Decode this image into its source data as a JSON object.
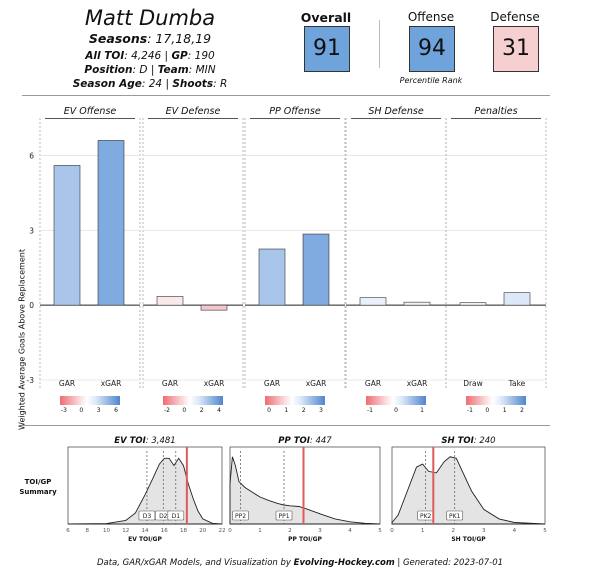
{
  "header": {
    "player_name": "Matt Dumba",
    "seasons_label": "Seasons",
    "seasons_value": "17,18,19",
    "all_toi_label": "All TOI",
    "all_toi_value": "4,246",
    "gp_label": "GP",
    "gp_value": "190",
    "position_label": "Position",
    "position_value": "D",
    "team_label": "Team",
    "team_value": "MIN",
    "season_age_label": "Season Age",
    "season_age_value": "24",
    "shoots_label": "Shoots",
    "shoots_value": "R"
  },
  "scores": {
    "overall_label": "Overall",
    "overall_value": "91",
    "offense_label": "Offense",
    "offense_value": "94",
    "defense_label": "Defense",
    "defense_value": "31",
    "percentile_label": "Percentile Rank",
    "colors": {
      "overall": "#6fa3dc",
      "offense": "#6fa3dc",
      "defense": "#f6cfd0"
    }
  },
  "chart_data": [
    {
      "type": "bar",
      "ylabel": "Weighted Average Goals Above Replacement",
      "ylim": [
        -3.4,
        7.5
      ],
      "yticks": [
        -3,
        0,
        3,
        6
      ],
      "panels": [
        {
          "title": "EV Offense",
          "categories": [
            "GAR",
            "xGAR"
          ],
          "values": [
            5.6,
            6.6
          ],
          "colors": [
            "#a9c6ea",
            "#80abe0"
          ],
          "legend_ticks": [
            "-3",
            "0",
            "3",
            "6"
          ]
        },
        {
          "title": "EV Defense",
          "categories": [
            "GAR",
            "xGAR"
          ],
          "values": [
            0.35,
            -0.2
          ],
          "colors": [
            "#fbe9ea",
            "#f3c7cb"
          ],
          "legend_ticks": [
            "-2",
            "0",
            "2",
            "4"
          ]
        },
        {
          "title": "PP Offense",
          "categories": [
            "GAR",
            "xGAR"
          ],
          "values": [
            2.25,
            2.85
          ],
          "colors": [
            "#a9c6ea",
            "#80abe0"
          ],
          "legend_ticks": [
            "0",
            "1",
            "2",
            "3"
          ]
        },
        {
          "title": "SH Defense",
          "categories": [
            "GAR",
            "xGAR"
          ],
          "values": [
            0.3,
            0.12
          ],
          "colors": [
            "#eaf0fb",
            "#eef3fb"
          ],
          "legend_ticks": [
            "-1",
            "0",
            "1"
          ]
        },
        {
          "title": "Penalties",
          "categories": [
            "Draw",
            "Take"
          ],
          "values": [
            0.1,
            0.5
          ],
          "colors": [
            "#eef3fb",
            "#dce7f7"
          ],
          "legend_ticks": [
            "-1",
            "0",
            "1",
            "2"
          ]
        }
      ]
    },
    {
      "type": "area",
      "title_label": "EV TOI",
      "title_value": "3,481",
      "xlabel": "EV TOI/GP",
      "xlim": [
        6,
        22
      ],
      "xticks": [
        6,
        8,
        10,
        12,
        14,
        16,
        18,
        20,
        22
      ],
      "player_value": 18.35,
      "markers": [
        {
          "label": "D3",
          "x": 14.2
        },
        {
          "label": "D2",
          "x": 15.9
        },
        {
          "label": "D1",
          "x": 17.2
        }
      ],
      "x": [
        6,
        10,
        12,
        13,
        14,
        14.8,
        15.5,
        16,
        16.5,
        17,
        17.5,
        18,
        18.5,
        19,
        19.5,
        20,
        21,
        22
      ],
      "y": [
        0,
        0.005,
        0.05,
        0.15,
        0.4,
        0.62,
        0.82,
        0.9,
        0.9,
        0.8,
        0.9,
        0.8,
        0.55,
        0.35,
        0.18,
        0.07,
        0.01,
        0
      ]
    },
    {
      "type": "area",
      "title_label": "PP TOI",
      "title_value": "447",
      "xlabel": "PP TOI/GP",
      "xlim": [
        0,
        5
      ],
      "xticks": [
        0,
        1,
        2,
        3,
        4,
        5
      ],
      "player_value": 2.45,
      "markers": [
        {
          "label": "PP2",
          "x": 0.35
        },
        {
          "label": "PP1",
          "x": 1.8
        }
      ],
      "x": [
        0,
        0.08,
        0.18,
        0.3,
        0.5,
        0.8,
        1.0,
        1.3,
        1.6,
        1.8,
        2.0,
        2.3,
        2.6,
        3.0,
        3.5,
        4.0,
        4.5,
        5
      ],
      "y": [
        0.55,
        0.92,
        0.8,
        0.58,
        0.5,
        0.42,
        0.37,
        0.32,
        0.28,
        0.26,
        0.25,
        0.24,
        0.2,
        0.14,
        0.07,
        0.03,
        0.01,
        0
      ]
    },
    {
      "type": "area",
      "title_label": "SH TOI",
      "title_value": "240",
      "xlabel": "SH TOI/GP",
      "xlim": [
        0,
        5
      ],
      "xticks": [
        0,
        1,
        2,
        3,
        4,
        5
      ],
      "player_value": 1.35,
      "markers": [
        {
          "label": "PK2",
          "x": 1.1
        },
        {
          "label": "PK1",
          "x": 2.05
        }
      ],
      "x": [
        0,
        0.2,
        0.5,
        0.8,
        1.0,
        1.2,
        1.45,
        1.7,
        1.9,
        2.1,
        2.3,
        2.6,
        3.0,
        3.5,
        4.0,
        5
      ],
      "y": [
        0.02,
        0.12,
        0.45,
        0.78,
        0.82,
        0.72,
        0.7,
        0.85,
        0.92,
        0.9,
        0.72,
        0.45,
        0.2,
        0.07,
        0.02,
        0
      ]
    }
  ],
  "toi_section_label": "TOI/GP Summary",
  "footer": {
    "prefix": "Data, GAR/xGAR Models, and Visualization by ",
    "brand": "Evolving-Hockey.com",
    "suffix": " | Generated: 2023-07-01"
  }
}
